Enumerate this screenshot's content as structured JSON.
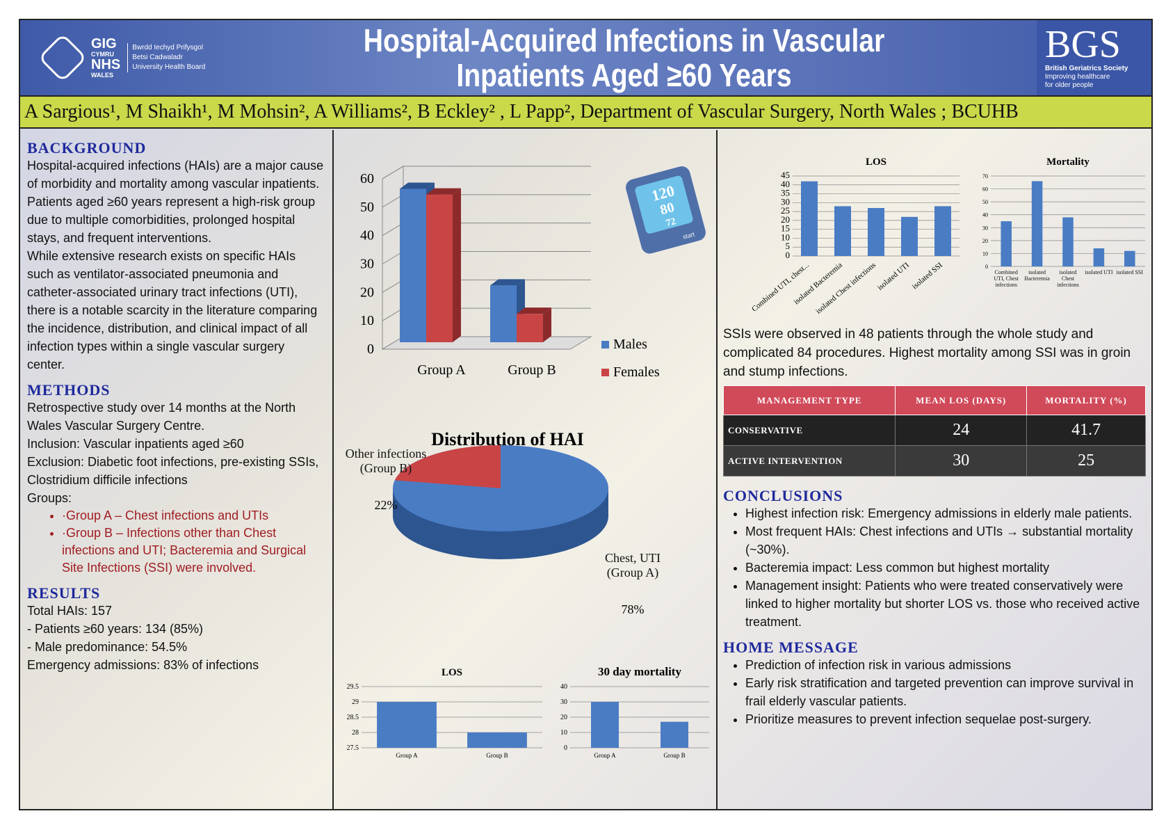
{
  "header": {
    "title_line1": "Hospital-Acquired Infections in Vascular",
    "title_line2": "Inpatients Aged ≥60 Years",
    "nhs_logo": {
      "gig": "GIG",
      "cymru": "CYMRU",
      "nhs": "NHS",
      "wales": "WALES",
      "line1": "Bwrdd Iechyd Prifysgol",
      "line2": "Betsi Cadwaladr",
      "line3": "University Health Board"
    },
    "bgs_logo": {
      "mark": "BGS",
      "line1": "British Geriatrics Society",
      "line2": "Improving healthcare",
      "line3": "for older people"
    }
  },
  "authors": "A Sargious¹, M Shaikh¹, M Mohsin², A Williams², B Eckley² , L Papp², Department of Vascular Surgery, North Wales ; BCUHB",
  "background": {
    "heading": "BACKGROUND",
    "p1": "Hospital-acquired infections (HAIs) are a major cause of morbidity and mortality among vascular inpatients. Patients aged ≥60 years represent a high-risk group due to multiple comorbidities, prolonged hospital stays, and frequent interventions.",
    "p2": "While extensive research exists on specific HAIs such as ventilator-associated pneumonia and catheter-associated urinary tract infections (UTI), there is a notable scarcity in the literature comparing the incidence, distribution, and clinical impact of all infection types within a single vascular surgery center."
  },
  "methods": {
    "heading": "METHODS",
    "lines": [
      "Retrospective study over 14 months at the North Wales Vascular Surgery Centre.",
      "Inclusion: Vascular inpatients aged ≥60",
      "Exclusion: Diabetic foot infections, pre-existing SSIs, Clostridium difficile infections",
      "Groups:"
    ],
    "groups": [
      "·Group A – Chest infections and UTIs",
      "·Group B – Infections other than Chest infections and UTI; Bacteremia and Surgical Site Infections (SSI) were involved."
    ]
  },
  "results": {
    "heading": "RESULTS",
    "lines": [
      "Total HAIs: 157",
      " - Patients ≥60 years: 134 (85%)",
      " - Male predominance: 54.5%",
      "Emergency admissions: 83% of infections"
    ]
  },
  "ssi_text": "SSIs were observed in 48 patients through the whole study and complicated 84 procedures. Highest mortality among SSI was in groin and stump infections.",
  "management_table": {
    "headers": [
      "MANAGEMENT TYPE",
      "MEAN LOS (DAYS)",
      "MORTALITY (%)"
    ],
    "rows": [
      [
        "CONSERVATIVE",
        "24",
        "41.7"
      ],
      [
        "ACTIVE INTERVENTION",
        "30",
        "25"
      ]
    ]
  },
  "conclusions": {
    "heading": "CONCLUSIONS",
    "items": [
      "Highest infection risk: Emergency admissions in elderly male patients.",
      "Most frequent HAIs: Chest infections and UTIs → substantial mortality (~30%).",
      "Bacteremia impact: Less common but highest mortality",
      "Management insight: Patients who were treated conservatively were linked to higher mortality but shorter LOS vs. those who received active treatment."
    ]
  },
  "home_message": {
    "heading": "HOME MESSAGE",
    "items": [
      "Prediction of infection risk in various admissions",
      "Early risk stratification and targeted prevention can improve survival in frail elderly vascular patients.",
      "Prioritize measures to prevent infection sequelae post-surgery."
    ]
  },
  "bp_monitor": {
    "sys": "120",
    "dia": "80",
    "pulse": "72",
    "button": "start"
  },
  "colors": {
    "blue": "#4a7cc4",
    "red": "#c94445",
    "title_blue": "#1f2a9c",
    "author_bar": "#c9d94a",
    "table_header": "#d04a5a"
  },
  "chart_data": [
    {
      "id": "gender",
      "type": "bar",
      "style": "3d",
      "categories": [
        "Group A",
        "Group B"
      ],
      "series": [
        {
          "name": "Males",
          "values": [
            54,
            20
          ]
        },
        {
          "name": "Females",
          "values": [
            52,
            10
          ]
        }
      ],
      "ylim": [
        0,
        60
      ],
      "yticks": [
        0,
        10,
        20,
        30,
        40,
        50,
        60
      ],
      "legend": "right",
      "grid": true
    },
    {
      "id": "dist",
      "type": "pie",
      "style": "3d",
      "title": "Distribution of HAI",
      "slices": [
        {
          "label": "Chest, UTI (Group A)",
          "value": 78,
          "pct": "78%"
        },
        {
          "label": "Other infections (Group B)",
          "value": 22,
          "pct": "22%"
        }
      ]
    },
    {
      "id": "los_group",
      "type": "bar",
      "title": "LOS",
      "categories": [
        "Group A",
        "Group B"
      ],
      "values": [
        29,
        28
      ],
      "ylim": [
        27.5,
        29.5
      ],
      "yticks": [
        "27.5",
        "28",
        "28.5",
        "29",
        "29.5"
      ],
      "grid": true
    },
    {
      "id": "mort_group",
      "type": "bar",
      "title": "30 day mortality",
      "categories": [
        "Group A",
        "Group B"
      ],
      "values": [
        30,
        17
      ],
      "ylim": [
        0,
        40
      ],
      "yticks": [
        "0",
        "10",
        "20",
        "30",
        "40"
      ],
      "grid": true
    },
    {
      "id": "los_type",
      "type": "bar",
      "title": "LOS",
      "categories": [
        "Combined UTI, chest...",
        "isolated Bacteremia",
        "isolated Chest infections",
        "isolated UTI",
        "isolated SSI"
      ],
      "values": [
        42,
        28,
        27,
        22,
        28
      ],
      "ylim": [
        0,
        45
      ],
      "yticks": [
        "0",
        "5",
        "10",
        "15",
        "20",
        "25",
        "30",
        "35",
        "40",
        "45"
      ],
      "grid": true
    },
    {
      "id": "mort_type",
      "type": "bar",
      "title": "Mortality",
      "categories": [
        "Combined UTI, Chest infections",
        "isolated Bacteremia",
        "isolated Chest infections",
        "isolated UTI",
        "isolated SSI"
      ],
      "values": [
        35,
        66,
        38,
        14,
        12
      ],
      "ylim": [
        0,
        70
      ],
      "yticks": [
        "0",
        "10",
        "20",
        "30",
        "40",
        "50",
        "60",
        "70"
      ],
      "grid": true
    }
  ]
}
